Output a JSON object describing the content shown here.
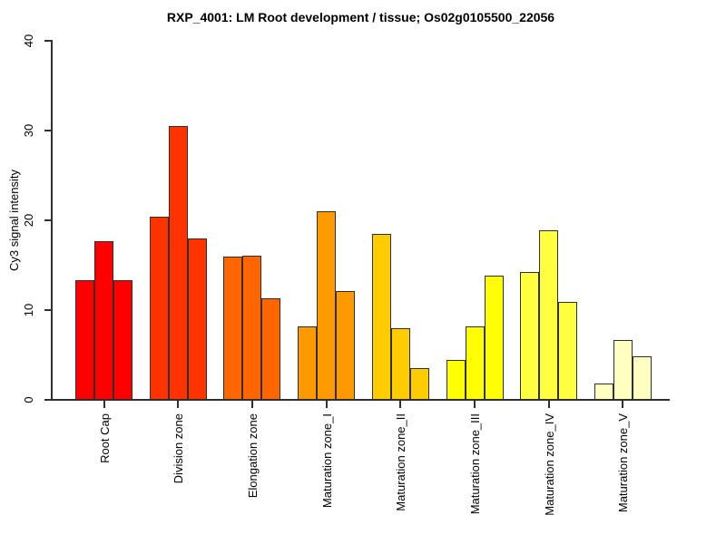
{
  "chart_data": {
    "type": "bar",
    "title": "RXP_4001: LM Root development / tissue; Os02g0105500_22056",
    "ylabel": "Cy3 signal intensity",
    "xlabel": "",
    "ylim": [
      0,
      40
    ],
    "yticks": [
      0,
      10,
      20,
      30,
      40
    ],
    "grid": false,
    "legend": false,
    "bars_per_group": 3,
    "bar_border_color": "#2f2f2f",
    "axis_color": "#303030",
    "categories": [
      "Root Cap",
      "Division zone",
      "Elongation zone",
      "Maturation zone_I",
      "Maturation zone_II",
      "Maturation zone_III",
      "Maturation zone_IV",
      "Maturation zone_V"
    ],
    "groups": [
      {
        "label": "Root Cap",
        "color": "#FF0000",
        "values": [
          13.3,
          17.7,
          13.3
        ]
      },
      {
        "label": "Division zone",
        "color": "#FF3300",
        "values": [
          20.4,
          30.5,
          18.0
        ]
      },
      {
        "label": "Elongation zone",
        "color": "#FF6600",
        "values": [
          16.0,
          16.1,
          11.3
        ]
      },
      {
        "label": "Maturation zone_I",
        "color": "#FF9900",
        "values": [
          8.2,
          21.0,
          12.1
        ]
      },
      {
        "label": "Maturation zone_II",
        "color": "#FFCC00",
        "values": [
          18.5,
          8.0,
          3.5
        ]
      },
      {
        "label": "Maturation zone_III",
        "color": "#FFFF00",
        "values": [
          4.4,
          8.2,
          13.8
        ]
      },
      {
        "label": "Maturation zone_IV",
        "color": "#FFFF40",
        "values": [
          14.2,
          18.9,
          10.9
        ]
      },
      {
        "label": "Maturation zone_V",
        "color": "#FFFFBF",
        "values": [
          1.8,
          6.7,
          4.8
        ]
      }
    ]
  }
}
